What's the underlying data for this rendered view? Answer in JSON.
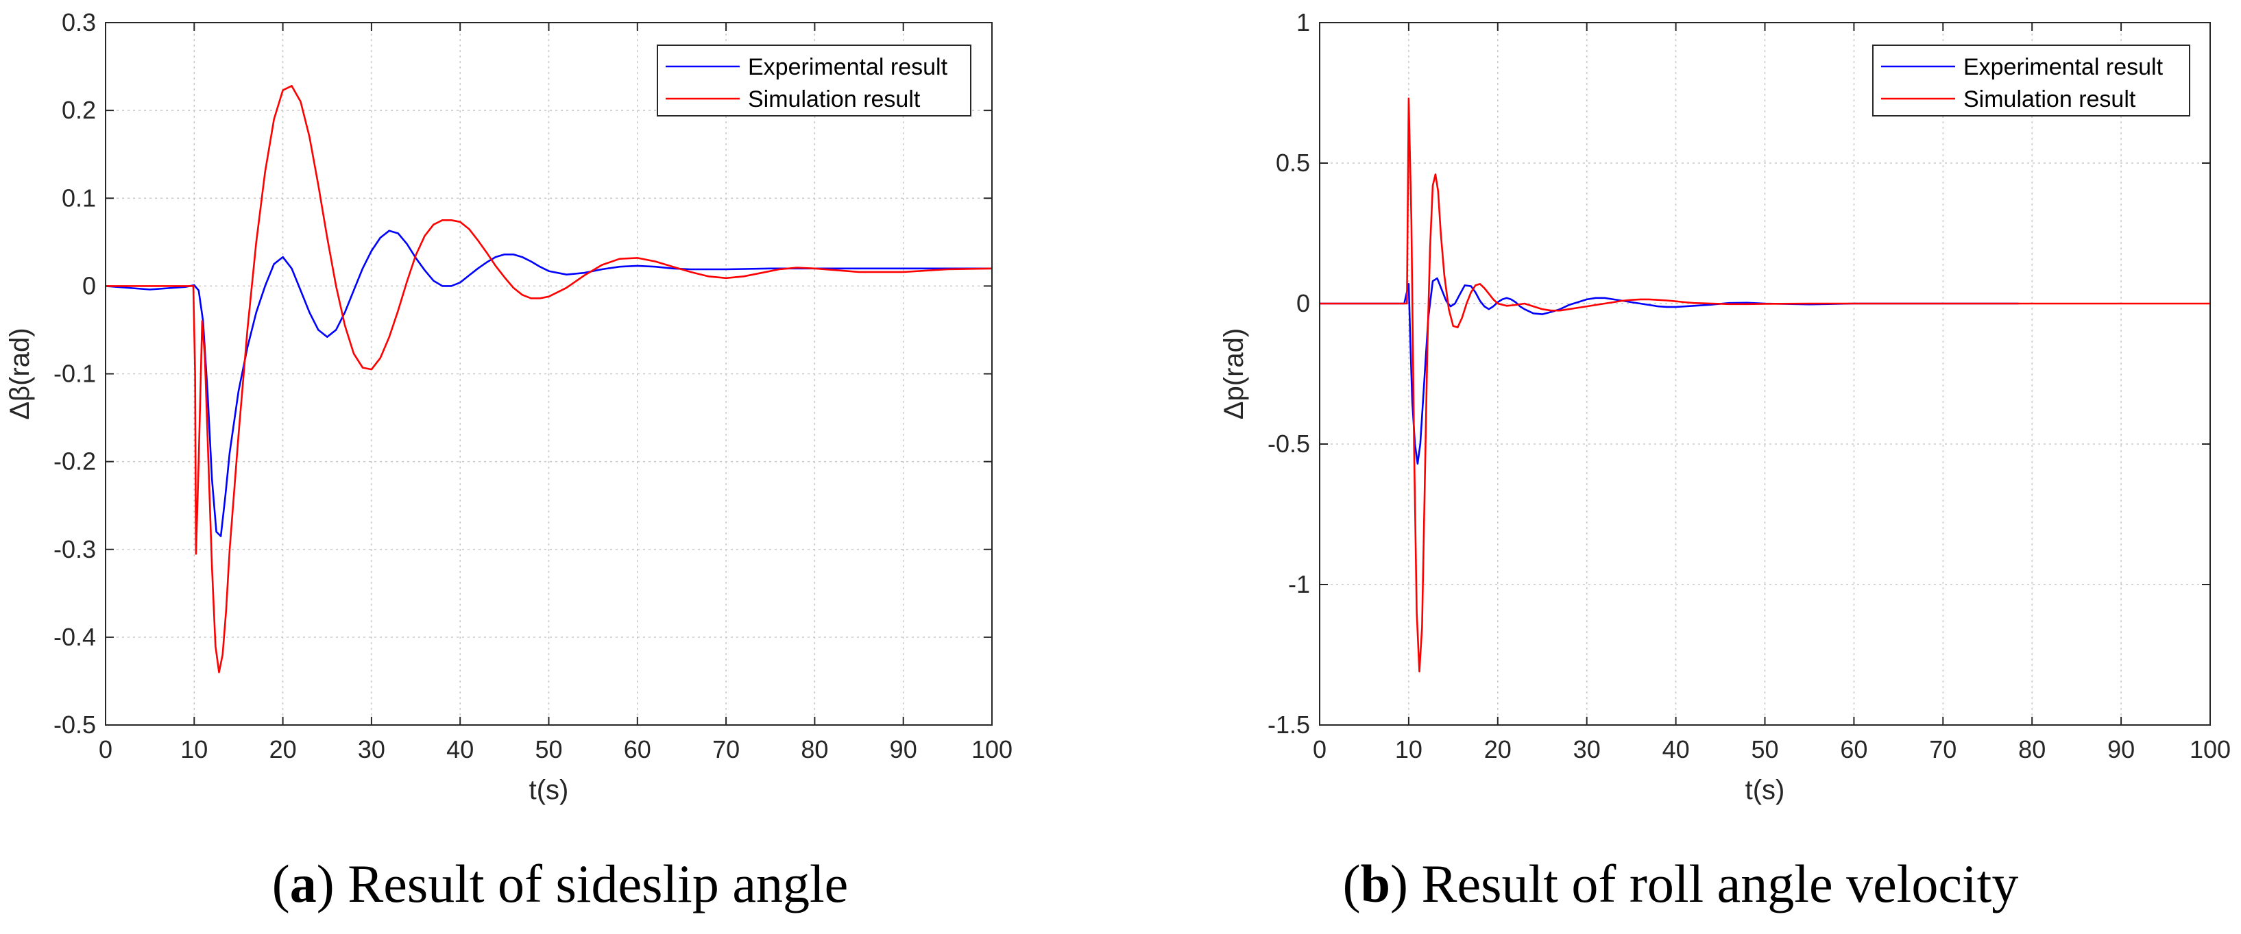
{
  "chart_data": [
    {
      "type": "line",
      "panel": "a",
      "ylabel": "Δβ(rad)",
      "xlabel": "t(s)",
      "xlim": [
        0,
        100
      ],
      "ylim": [
        -0.5,
        0.3
      ],
      "xticks": [
        "0",
        "10",
        "20",
        "30",
        "40",
        "50",
        "60",
        "70",
        "80",
        "90",
        "100"
      ],
      "yticks": [
        "-0.5",
        "-0.4",
        "-0.3",
        "-0.2",
        "-0.1",
        "0",
        "0.1",
        "0.2",
        "0.3"
      ],
      "grid": true,
      "legend_position": "top-right",
      "caption_letter": "a",
      "caption_text": ") Result of sideslip angle",
      "series": [
        {
          "name": "Experimental result",
          "color": "#0000ff",
          "x": [
            0,
            5,
            9,
            10,
            10.5,
            11,
            11.5,
            12,
            12.5,
            13,
            13.5,
            14,
            15,
            16,
            17,
            18,
            19,
            20,
            21,
            22,
            23,
            24,
            25,
            26,
            27,
            28,
            29,
            30,
            31,
            32,
            33,
            34,
            35,
            36,
            37,
            38,
            39,
            40,
            41,
            42,
            43,
            44,
            45,
            46,
            47,
            48,
            49,
            50,
            52,
            54,
            56,
            58,
            60,
            62,
            64,
            66,
            68,
            70,
            75,
            80,
            85,
            90,
            95,
            100
          ],
          "y": [
            0,
            -0.004,
            -0.001,
            0.001,
            -0.005,
            -0.04,
            -0.12,
            -0.22,
            -0.28,
            -0.285,
            -0.24,
            -0.19,
            -0.12,
            -0.07,
            -0.03,
            0.0,
            0.025,
            0.033,
            0.02,
            -0.005,
            -0.03,
            -0.05,
            -0.058,
            -0.05,
            -0.03,
            -0.005,
            0.02,
            0.04,
            0.055,
            0.063,
            0.06,
            0.048,
            0.032,
            0.018,
            0.006,
            0.0,
            0.0,
            0.004,
            0.012,
            0.02,
            0.027,
            0.033,
            0.036,
            0.036,
            0.033,
            0.028,
            0.022,
            0.017,
            0.013,
            0.015,
            0.019,
            0.022,
            0.023,
            0.022,
            0.02,
            0.019,
            0.019,
            0.019,
            0.02,
            0.02,
            0.02,
            0.02,
            0.02,
            0.02
          ]
        },
        {
          "name": "Simulation result",
          "color": "#ff0000",
          "x": [
            0,
            9,
            9.9,
            10.1,
            10.2,
            10.5,
            10.9,
            11.2,
            11.6,
            12,
            12.4,
            12.8,
            13.2,
            13.6,
            14,
            15,
            16,
            17,
            18,
            19,
            20,
            21,
            22,
            23,
            24,
            25,
            26,
            27,
            28,
            29,
            30,
            31,
            32,
            33,
            34,
            35,
            36,
            37,
            38,
            39,
            40,
            41,
            42,
            43,
            44,
            45,
            46,
            47,
            48,
            49,
            50,
            52,
            54,
            56,
            58,
            60,
            62,
            64,
            66,
            68,
            70,
            72,
            74,
            76,
            78,
            80,
            85,
            90,
            95,
            100
          ],
          "y": [
            0,
            0,
            0,
            -0.1,
            -0.305,
            -0.2,
            -0.04,
            -0.08,
            -0.2,
            -0.32,
            -0.41,
            -0.44,
            -0.42,
            -0.37,
            -0.3,
            -0.17,
            -0.05,
            0.05,
            0.13,
            0.19,
            0.223,
            0.228,
            0.21,
            0.17,
            0.115,
            0.055,
            0.0,
            -0.045,
            -0.077,
            -0.093,
            -0.095,
            -0.082,
            -0.058,
            -0.028,
            0.005,
            0.035,
            0.057,
            0.07,
            0.075,
            0.075,
            0.073,
            0.065,
            0.052,
            0.038,
            0.023,
            0.01,
            -0.002,
            -0.01,
            -0.014,
            -0.014,
            -0.012,
            -0.002,
            0.012,
            0.024,
            0.031,
            0.032,
            0.028,
            0.022,
            0.016,
            0.011,
            0.009,
            0.011,
            0.015,
            0.019,
            0.021,
            0.02,
            0.016,
            0.016,
            0.019,
            0.02
          ]
        }
      ]
    },
    {
      "type": "line",
      "panel": "b",
      "ylabel": "Δp(rad)",
      "xlabel": "t(s)",
      "xlim": [
        0,
        100
      ],
      "ylim": [
        -1.5,
        1
      ],
      "xticks": [
        "0",
        "10",
        "20",
        "30",
        "40",
        "50",
        "60",
        "70",
        "80",
        "90",
        "100"
      ],
      "yticks": [
        "-1.5",
        "-1",
        "-0.5",
        "0",
        "0.5",
        "1"
      ],
      "grid": true,
      "legend_position": "top-right",
      "caption_letter": "b",
      "caption_text": ") Result of roll angle velocity",
      "series": [
        {
          "name": "Experimental result",
          "color": "#0000ff",
          "x": [
            0,
            9.5,
            10,
            10.2,
            10.4,
            10.7,
            11,
            11.3,
            11.7,
            12.2,
            12.7,
            13.2,
            13.7,
            14.2,
            14.7,
            15.2,
            15.7,
            16.3,
            17,
            17.5,
            18,
            18.5,
            19,
            19.5,
            20,
            20.5,
            21,
            21.5,
            22,
            22.5,
            23,
            24,
            25,
            26,
            27,
            28,
            29,
            30,
            31,
            32,
            33,
            34,
            35,
            36,
            37,
            38,
            39,
            40,
            42,
            44,
            46,
            48,
            50,
            55,
            60,
            65,
            70,
            75,
            78.5
          ],
          "y": [
            0,
            0,
            0.07,
            -0.15,
            -0.35,
            -0.5,
            -0.57,
            -0.5,
            -0.3,
            -0.05,
            0.08,
            0.09,
            0.05,
            0.01,
            -0.01,
            0.0,
            0.03,
            0.065,
            0.062,
            0.04,
            0.01,
            -0.01,
            -0.02,
            -0.01,
            0.005,
            0.015,
            0.02,
            0.015,
            0.005,
            -0.01,
            -0.02,
            -0.035,
            -0.038,
            -0.03,
            -0.02,
            -0.005,
            0.005,
            0.015,
            0.02,
            0.02,
            0.015,
            0.01,
            0.005,
            0.0,
            -0.005,
            -0.01,
            -0.012,
            -0.012,
            -0.008,
            -0.004,
            0.002,
            0.003,
            0.0,
            -0.003,
            0.0,
            0.0,
            0.0,
            0.0,
            0.0
          ]
        },
        {
          "name": "Simulation result",
          "color": "#ff0000",
          "x": [
            0,
            9.8,
            10,
            10.3,
            10.6,
            10.9,
            11.2,
            11.5,
            11.8,
            12.1,
            12.4,
            12.7,
            13,
            13.3,
            13.6,
            14,
            14.5,
            15,
            15.5,
            16,
            16.5,
            17,
            17.5,
            18,
            18.5,
            19,
            19.5,
            20,
            21,
            22,
            23,
            24,
            25,
            26,
            27,
            28,
            29,
            30,
            31,
            32,
            33,
            34,
            35,
            36,
            37,
            38,
            39,
            40,
            41,
            42,
            44,
            46,
            48,
            50,
            55,
            60,
            70,
            80,
            90,
            100
          ],
          "y": [
            0,
            0,
            0.73,
            0.3,
            -0.5,
            -1.1,
            -1.31,
            -1.15,
            -0.65,
            -0.15,
            0.2,
            0.42,
            0.46,
            0.4,
            0.25,
            0.1,
            -0.02,
            -0.08,
            -0.085,
            -0.05,
            0.0,
            0.04,
            0.065,
            0.07,
            0.055,
            0.035,
            0.015,
            0.0,
            -0.008,
            -0.005,
            0.0,
            -0.01,
            -0.02,
            -0.025,
            -0.025,
            -0.02,
            -0.015,
            -0.01,
            -0.005,
            0.0,
            0.005,
            0.01,
            0.013,
            0.015,
            0.015,
            0.013,
            0.011,
            0.008,
            0.005,
            0.002,
            0.0,
            -0.002,
            -0.002,
            -0.001,
            0.0,
            0.0,
            0.0,
            0.0,
            0.0,
            0.0
          ]
        }
      ]
    }
  ]
}
